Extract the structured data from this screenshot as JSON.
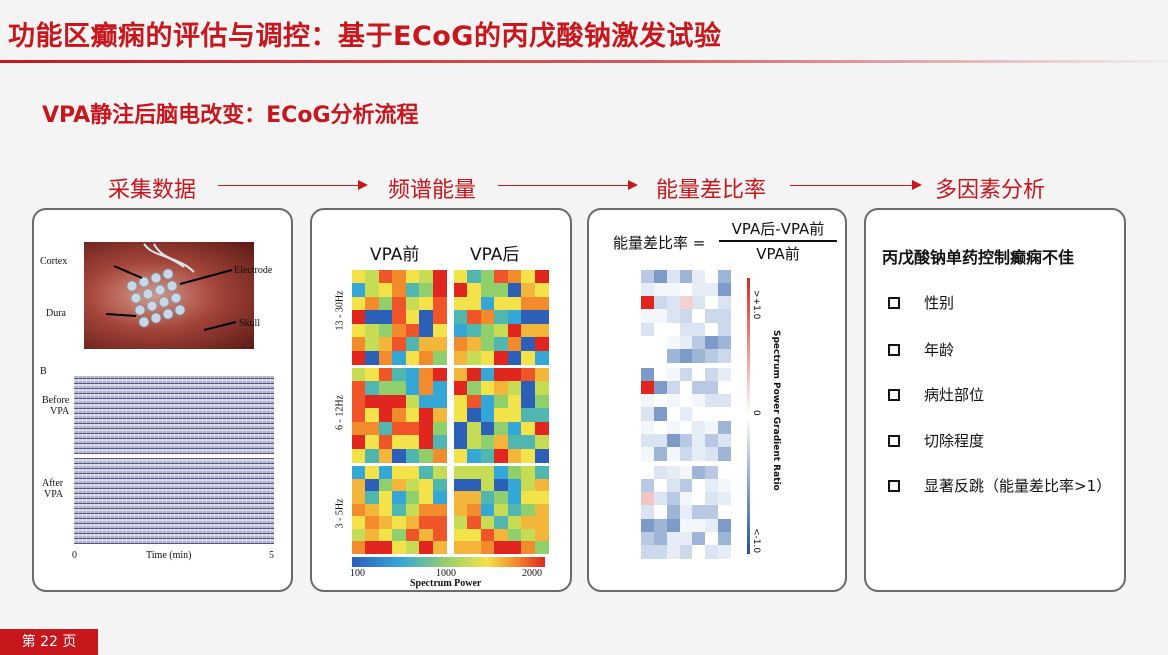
{
  "slide": {
    "title": "功能区癫痫的评估与调控：基于ECoG的丙戊酸钠激发试验",
    "subtitle": "VPA静注后脑电改变：ECoG分析流程",
    "page_label": "第 22 页"
  },
  "steps": [
    "采集数据",
    "频谱能量",
    "能量差比率",
    "多因素分析"
  ],
  "colors": {
    "accent": "#c8161d",
    "panel_border": "#6a6a6a"
  },
  "panel1": {
    "photo_labels": {
      "cortex": "Cortex",
      "electrode": "Electrode",
      "dura": "Dura",
      "skull": "Skull"
    },
    "section_letter": "B",
    "before_label": "Before\nVPA",
    "after_label": "After\nVPA",
    "x_start": "0",
    "x_end": "5",
    "x_label": "Time (min)"
  },
  "panel2": {
    "col_before": "VPA前",
    "col_after": "VPA后",
    "bands": [
      "13 - 30Hz",
      "6 - 12Hz",
      "3 - 5Hz"
    ],
    "colorbar_ticks": [
      "100",
      "1000",
      "2000"
    ],
    "colorbar_label": "Spectrum Power"
  },
  "panel3": {
    "formula_label": "能量差比率 =",
    "numerator": "VPA后-VPA前",
    "denominator": "VPA前",
    "cb_top": ">+1.0",
    "cb_mid": "0",
    "cb_bottom": "<-1.0",
    "cb_label": "Spectrum Power Gradient Ratio"
  },
  "panel4": {
    "heading": "丙戊酸钠单药控制癫痫不佳",
    "items": [
      "性别",
      "年龄",
      "病灶部位",
      "切除程度",
      "显著反跳（能量差比率>1）"
    ]
  }
}
